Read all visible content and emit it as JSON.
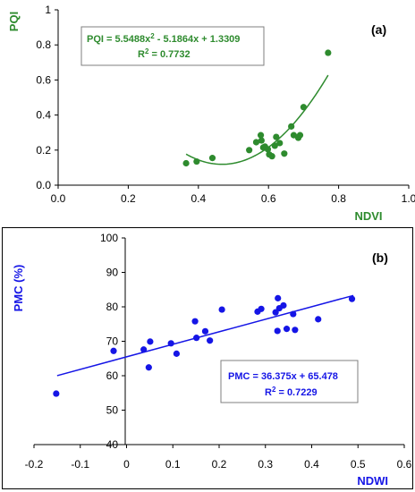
{
  "chart_data": [
    {
      "type": "scatter",
      "panel_label": "(a)",
      "xlabel": "NDVI",
      "ylabel": "PQI",
      "xlim": [
        0.0,
        1.0
      ],
      "ylim": [
        0.0,
        1.0
      ],
      "x_ticks": [
        "0.0",
        "0.2",
        "0.4",
        "0.6",
        "0.8",
        "1.0"
      ],
      "y_ticks": [
        "0.0",
        "0.2",
        "0.4",
        "0.6",
        "0.8",
        "1"
      ],
      "grid": false,
      "color": "#2e8b2e",
      "trendline": {
        "type": "polynomial",
        "coefficients": [
          5.5488,
          -5.1864,
          1.3309
        ],
        "equation_line1": "PQI = 5.5488x",
        "equation_exp": "2",
        "equation_line1_rest": " - 5.1864x + 1.3309",
        "r2_label": "R",
        "r2_exp": "2",
        "r2_value": " = 0.7732"
      },
      "points": [
        {
          "x": 0.365,
          "y": 0.125
        },
        {
          "x": 0.395,
          "y": 0.135
        },
        {
          "x": 0.44,
          "y": 0.155
        },
        {
          "x": 0.545,
          "y": 0.2
        },
        {
          "x": 0.565,
          "y": 0.245
        },
        {
          "x": 0.578,
          "y": 0.285
        },
        {
          "x": 0.58,
          "y": 0.255
        },
        {
          "x": 0.585,
          "y": 0.215
        },
        {
          "x": 0.59,
          "y": 0.22
        },
        {
          "x": 0.598,
          "y": 0.205
        },
        {
          "x": 0.602,
          "y": 0.175
        },
        {
          "x": 0.61,
          "y": 0.165
        },
        {
          "x": 0.618,
          "y": 0.225
        },
        {
          "x": 0.622,
          "y": 0.275
        },
        {
          "x": 0.632,
          "y": 0.24
        },
        {
          "x": 0.645,
          "y": 0.18
        },
        {
          "x": 0.665,
          "y": 0.335
        },
        {
          "x": 0.672,
          "y": 0.285
        },
        {
          "x": 0.685,
          "y": 0.27
        },
        {
          "x": 0.69,
          "y": 0.285
        },
        {
          "x": 0.7,
          "y": 0.445
        },
        {
          "x": 0.77,
          "y": 0.755
        }
      ]
    },
    {
      "type": "scatter",
      "panel_label": "(b)",
      "xlabel": "NDWI",
      "ylabel": "PMC (%)",
      "xlim": [
        -0.2,
        0.6
      ],
      "ylim": [
        40,
        100
      ],
      "x_ticks": [
        "-0.2",
        "-0.1",
        "0",
        "0.1",
        "0.2",
        "0.3",
        "0.4",
        "0.5",
        "0.6"
      ],
      "y_ticks": [
        "40",
        "50",
        "60",
        "70",
        "80",
        "90",
        "100"
      ],
      "grid": false,
      "color": "#1515e6",
      "trendline": {
        "type": "linear",
        "coefficients": [
          36.375,
          65.478
        ],
        "x_range": [
          -0.15,
          0.49
        ],
        "equation_line1": "PMC = 36.375x + 65.478",
        "r2_label": "R",
        "r2_exp": "2",
        "r2_value": " = 0.7229"
      },
      "points": [
        {
          "x": -0.152,
          "y": 54.8
        },
        {
          "x": -0.028,
          "y": 67.2
        },
        {
          "x": 0.037,
          "y": 67.6
        },
        {
          "x": 0.048,
          "y": 62.4
        },
        {
          "x": 0.051,
          "y": 69.9
        },
        {
          "x": 0.096,
          "y": 69.4
        },
        {
          "x": 0.108,
          "y": 66.4
        },
        {
          "x": 0.148,
          "y": 75.8
        },
        {
          "x": 0.151,
          "y": 71.0
        },
        {
          "x": 0.17,
          "y": 72.9
        },
        {
          "x": 0.18,
          "y": 70.2
        },
        {
          "x": 0.206,
          "y": 79.2
        },
        {
          "x": 0.283,
          "y": 78.6
        },
        {
          "x": 0.291,
          "y": 79.4
        },
        {
          "x": 0.322,
          "y": 78.4
        },
        {
          "x": 0.326,
          "y": 73.0
        },
        {
          "x": 0.327,
          "y": 82.5
        },
        {
          "x": 0.33,
          "y": 79.6
        },
        {
          "x": 0.339,
          "y": 80.4
        },
        {
          "x": 0.346,
          "y": 73.6
        },
        {
          "x": 0.36,
          "y": 77.9
        },
        {
          "x": 0.364,
          "y": 73.3
        },
        {
          "x": 0.414,
          "y": 76.4
        },
        {
          "x": 0.487,
          "y": 82.3
        }
      ]
    }
  ]
}
